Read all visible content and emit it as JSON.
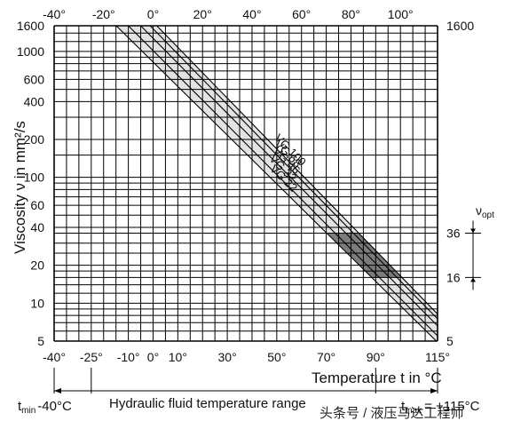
{
  "chart_data": {
    "type": "line",
    "title": "",
    "xlabel": "Temperature t in °C",
    "ylabel": "Viscosity ν in mm²/s",
    "xlim": [
      -40,
      115
    ],
    "ylim": [
      5,
      1600
    ],
    "yscale": "log",
    "top_ticks": [
      {
        "value": -40,
        "label": "-40°"
      },
      {
        "value": -20,
        "label": "-20°"
      },
      {
        "value": 0,
        "label": "0°"
      },
      {
        "value": 20,
        "label": "20°"
      },
      {
        "value": 40,
        "label": "40°"
      },
      {
        "value": 60,
        "label": "60°"
      },
      {
        "value": 80,
        "label": "80°"
      },
      {
        "value": 100,
        "label": "100°"
      }
    ],
    "bottom_ticks": [
      {
        "value": -40,
        "label": "-40°"
      },
      {
        "value": -25,
        "label": "-25°"
      },
      {
        "value": -10,
        "label": "-10°"
      },
      {
        "value": 0,
        "label": "0°"
      },
      {
        "value": 10,
        "label": "10°"
      },
      {
        "value": 30,
        "label": "30°"
      },
      {
        "value": 50,
        "label": "50°"
      },
      {
        "value": 70,
        "label": "70°"
      },
      {
        "value": 90,
        "label": "90°"
      },
      {
        "value": 115,
        "label": "115°"
      }
    ],
    "left_ticks": [
      {
        "value": 1600,
        "label": "1600"
      },
      {
        "value": 1000,
        "label": "1000"
      },
      {
        "value": 600,
        "label": "600"
      },
      {
        "value": 400,
        "label": "400"
      },
      {
        "value": 200,
        "label": "200"
      },
      {
        "value": 100,
        "label": "100"
      },
      {
        "value": 60,
        "label": "60"
      },
      {
        "value": 40,
        "label": "40"
      },
      {
        "value": 20,
        "label": "20"
      },
      {
        "value": 10,
        "label": "10"
      },
      {
        "value": 5,
        "label": "5"
      }
    ],
    "right_ticks": [
      {
        "value": 1600,
        "label": "1600"
      },
      {
        "value": 36,
        "label": "36"
      },
      {
        "value": 16,
        "label": "16"
      },
      {
        "value": 5,
        "label": "5"
      }
    ],
    "series": [
      {
        "name": "VG 22",
        "points": [
          [
            -14.9,
            1600
          ],
          [
            114.5,
            5
          ]
        ]
      },
      {
        "name": "VG 32",
        "points": [
          [
            -10.0,
            1600
          ],
          [
            115,
            5.5
          ]
        ]
      },
      {
        "name": "VG 46",
        "points": [
          [
            -5.0,
            1600
          ],
          [
            115,
            6.6
          ]
        ]
      },
      {
        "name": "VG 68",
        "points": [
          [
            -1.2,
            1600
          ],
          [
            115,
            7.5
          ]
        ]
      },
      {
        "name": "VG 100",
        "points": [
          [
            1.5,
            1600
          ],
          [
            115,
            8.2
          ]
        ]
      }
    ],
    "optimum_band": {
      "label": "ν",
      "label_sub": "opt",
      "v_min": 16,
      "v_max": 36
    },
    "temperature_range": {
      "label": "Hydraulic fluid temperature range",
      "t_min": -40,
      "t_max": 115,
      "t_min_label": "-40°C",
      "t_max_label": "= +115°C",
      "t_min_sym": "t",
      "t_min_sub": "min",
      "t_max_sym": "t",
      "t_max_sub": "max"
    },
    "grid": true,
    "legend": "none"
  },
  "watermark": "头条号 / 液压马达工程师"
}
